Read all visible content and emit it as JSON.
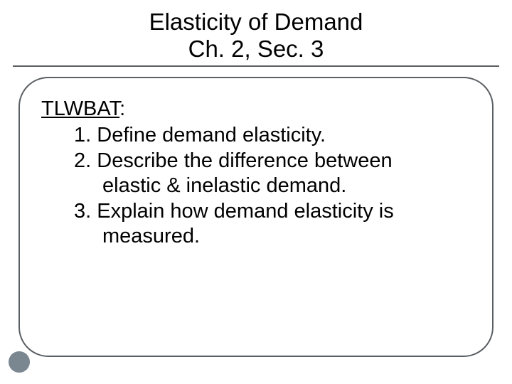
{
  "colors": {
    "text": "#000000",
    "rule": "#5a5f63",
    "accent_dot": "#7a8690",
    "background": "#ffffff"
  },
  "typography": {
    "title_fontsize_pt": 25,
    "body_fontsize_pt": 22,
    "font_family": "Arial"
  },
  "layout": {
    "slide_width": 720,
    "slide_height": 540,
    "content_border_radius": 42
  },
  "title": {
    "line1": "Elasticity of Demand",
    "line2": "Ch. 2, Sec. 3"
  },
  "body": {
    "heading": "TLWBAT",
    "heading_suffix": ":",
    "objectives": [
      {
        "num": "1.",
        "text": "Define demand elasticity."
      },
      {
        "num": "2.",
        "text": "Describe the difference between",
        "cont": "elastic & inelastic demand."
      },
      {
        "num": "3.",
        "text": "Explain how demand elasticity is",
        "cont": "measured."
      }
    ]
  }
}
